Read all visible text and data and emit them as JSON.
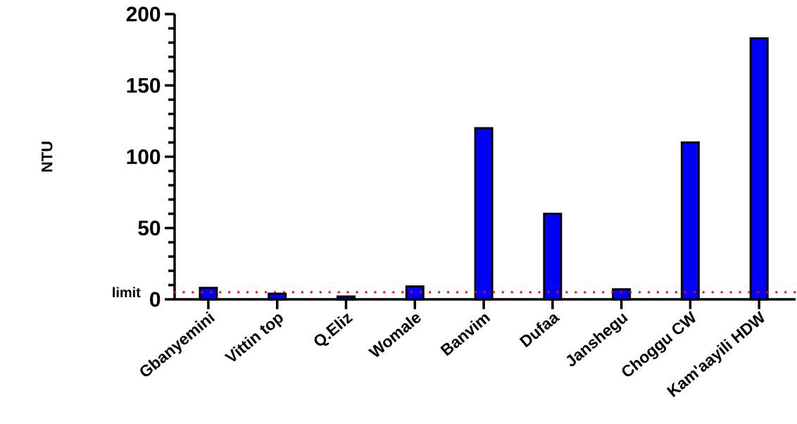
{
  "chart_data": {
    "type": "bar",
    "ylabel": "NTU",
    "categories": [
      "Gbanyemini",
      "Vittin top",
      "Q.Eliz",
      "Womale",
      "Banvim",
      "Dufaa",
      "Janshegu",
      "Choggu CW",
      "Kam'aayili HDW"
    ],
    "values": [
      8,
      4,
      2,
      9,
      120,
      60,
      7,
      110,
      183
    ],
    "color": "#0000ff",
    "ylim": [
      0,
      200
    ],
    "yticks": [
      0,
      50,
      100,
      150,
      200
    ],
    "ref_lines": [
      {
        "axis": "y",
        "value": 5,
        "label": "limit",
        "color": "#ff0000",
        "line_style": "dotted"
      }
    ]
  }
}
